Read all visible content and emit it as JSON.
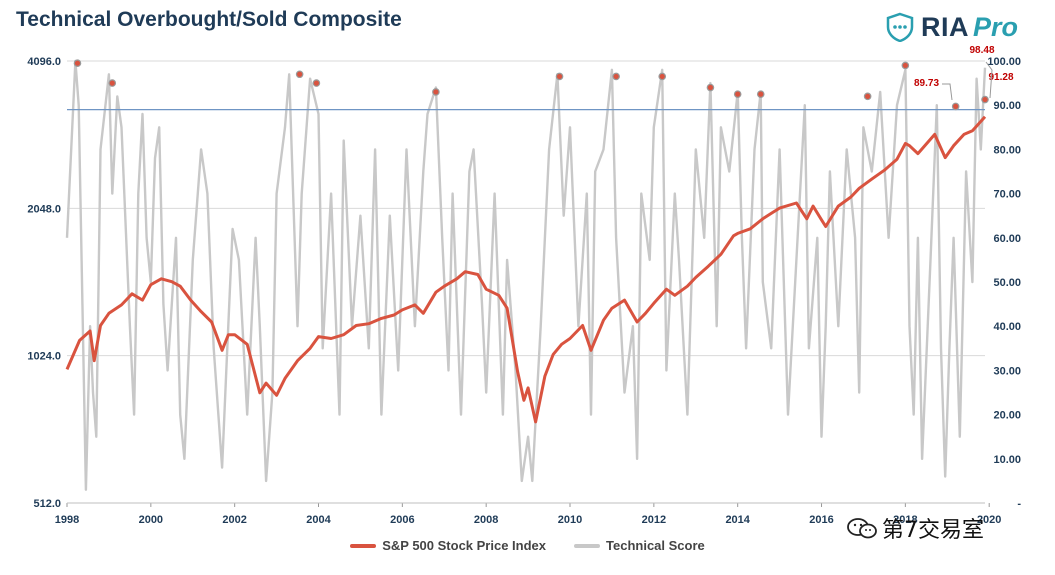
{
  "page": {
    "title": "Technical Overbought/Sold Composite",
    "logo": {
      "brand": "RIA",
      "suffix": "Pro"
    },
    "watermark": "第7交易室"
  },
  "chart_data": {
    "type": "line",
    "title": "Technical Overbought/Sold Composite",
    "x_ticks": [
      "1998",
      "2000",
      "2002",
      "2004",
      "2006",
      "2008",
      "2010",
      "2012",
      "2014",
      "2016",
      "2018",
      "2020"
    ],
    "xlim": [
      1998,
      2019.9
    ],
    "y_left": {
      "ticks": [
        "512.0",
        "1024.0",
        "2048.0",
        "4096.0"
      ],
      "ylim": [
        512,
        4096
      ],
      "scale": "log2"
    },
    "y_right": {
      "ticks": [
        "-",
        "10.00",
        "20.00",
        "30.00",
        "40.00",
        "50.00",
        "60.00",
        "70.00",
        "80.00",
        "90.00",
        "100.00"
      ],
      "ylim": [
        0,
        100
      ]
    },
    "reference_line": {
      "value": 89.0,
      "axis": "right",
      "color": "#6f95c4"
    },
    "annotations": [
      {
        "text": "98.48",
        "color": "#c00000"
      },
      {
        "text": "89.73",
        "color": "#c00000"
      },
      {
        "text": "91.28",
        "color": "#c00000"
      }
    ],
    "legend_position": "bottom-center",
    "series": [
      {
        "name": "S&P 500 Stock Price Index",
        "axis": "left",
        "color": "#d9533f",
        "x": [
          1998.0,
          1998.3,
          1998.55,
          1998.65,
          1998.8,
          1999.0,
          1999.3,
          1999.55,
          1999.8,
          2000.0,
          2000.25,
          2000.5,
          2000.7,
          2000.95,
          2001.2,
          2001.45,
          2001.7,
          2001.85,
          2002.0,
          2002.3,
          2002.6,
          2002.75,
          2003.0,
          2003.2,
          2003.5,
          2003.8,
          2004.0,
          2004.3,
          2004.6,
          2004.9,
          2005.2,
          2005.5,
          2005.8,
          2006.0,
          2006.3,
          2006.5,
          2006.8,
          2007.0,
          2007.3,
          2007.5,
          2007.8,
          2008.0,
          2008.3,
          2008.5,
          2008.75,
          2008.9,
          2009.0,
          2009.18,
          2009.4,
          2009.6,
          2009.8,
          2010.0,
          2010.3,
          2010.5,
          2010.8,
          2011.0,
          2011.3,
          2011.6,
          2011.8,
          2012.0,
          2012.3,
          2012.5,
          2012.8,
          2013.0,
          2013.3,
          2013.6,
          2013.9,
          2014.0,
          2014.3,
          2014.6,
          2014.8,
          2015.0,
          2015.4,
          2015.65,
          2015.8,
          2016.0,
          2016.1,
          2016.4,
          2016.7,
          2016.9,
          2017.2,
          2017.5,
          2017.8,
          2018.0,
          2018.1,
          2018.3,
          2018.7,
          2018.95,
          2019.15,
          2019.4,
          2019.6,
          2019.9
        ],
        "values": [
          960,
          1100,
          1150,
          1000,
          1180,
          1250,
          1300,
          1370,
          1330,
          1430,
          1470,
          1450,
          1420,
          1330,
          1260,
          1200,
          1050,
          1130,
          1130,
          1080,
          860,
          900,
          850,
          920,
          1000,
          1060,
          1120,
          1110,
          1130,
          1180,
          1190,
          1220,
          1240,
          1270,
          1300,
          1250,
          1380,
          1420,
          1470,
          1520,
          1500,
          1400,
          1360,
          1280,
          950,
          830,
          880,
          750,
          930,
          1030,
          1080,
          1110,
          1180,
          1050,
          1210,
          1280,
          1330,
          1200,
          1250,
          1310,
          1400,
          1360,
          1420,
          1480,
          1560,
          1650,
          1800,
          1820,
          1860,
          1950,
          2000,
          2050,
          2100,
          1950,
          2070,
          1940,
          1880,
          2070,
          2160,
          2250,
          2350,
          2450,
          2580,
          2780,
          2750,
          2650,
          2900,
          2600,
          2750,
          2900,
          2950,
          3150
        ],
        "line_width": 3
      },
      {
        "name": "Technical Score",
        "axis": "right",
        "color": "#c8c8c8",
        "x": [
          1998.0,
          1998.1,
          1998.2,
          1998.28,
          1998.45,
          1998.55,
          1998.62,
          1998.7,
          1998.8,
          1999.0,
          1999.08,
          1999.2,
          1999.3,
          1999.5,
          1999.6,
          1999.7,
          1999.8,
          1999.9,
          2000.0,
          2000.1,
          2000.2,
          2000.3,
          2000.4,
          2000.6,
          2000.7,
          2000.8,
          2001.0,
          2001.2,
          2001.35,
          2001.5,
          2001.7,
          2001.8,
          2001.95,
          2002.1,
          2002.3,
          2002.5,
          2002.6,
          2002.75,
          2002.9,
          2003.0,
          2003.2,
          2003.3,
          2003.5,
          2003.6,
          2003.8,
          2004.0,
          2004.1,
          2004.3,
          2004.5,
          2004.6,
          2004.8,
          2005.0,
          2005.2,
          2005.35,
          2005.5,
          2005.7,
          2005.9,
          2006.1,
          2006.3,
          2006.5,
          2006.6,
          2006.8,
          2006.95,
          2007.1,
          2007.2,
          2007.4,
          2007.6,
          2007.7,
          2007.9,
          2008.0,
          2008.2,
          2008.4,
          2008.5,
          2008.7,
          2008.85,
          2009.0,
          2009.1,
          2009.3,
          2009.5,
          2009.7,
          2009.85,
          2010.0,
          2010.2,
          2010.4,
          2010.5,
          2010.6,
          2010.8,
          2011.0,
          2011.1,
          2011.3,
          2011.5,
          2011.6,
          2011.7,
          2011.9,
          2012.0,
          2012.2,
          2012.3,
          2012.5,
          2012.6,
          2012.8,
          2013.0,
          2013.2,
          2013.35,
          2013.5,
          2013.6,
          2013.8,
          2014.0,
          2014.1,
          2014.2,
          2014.4,
          2014.55,
          2014.6,
          2014.8,
          2015.0,
          2015.2,
          2015.4,
          2015.6,
          2015.7,
          2015.9,
          2016.0,
          2016.1,
          2016.2,
          2016.4,
          2016.6,
          2016.8,
          2016.9,
          2017.0,
          2017.2,
          2017.4,
          2017.6,
          2017.8,
          2018.0,
          2018.1,
          2018.2,
          2018.3,
          2018.4,
          2018.6,
          2018.75,
          2018.85,
          2018.95,
          2019.05,
          2019.15,
          2019.3,
          2019.45,
          2019.6,
          2019.7,
          2019.8,
          2019.9
        ],
        "values": [
          60,
          80,
          100,
          90,
          3,
          40,
          25,
          15,
          80,
          97,
          70,
          92,
          85,
          40,
          20,
          70,
          88,
          60,
          50,
          78,
          85,
          45,
          30,
          60,
          20,
          10,
          55,
          80,
          70,
          35,
          8,
          30,
          62,
          55,
          20,
          60,
          40,
          5,
          25,
          70,
          85,
          97,
          40,
          70,
          96,
          88,
          35,
          70,
          20,
          82,
          40,
          65,
          35,
          80,
          20,
          65,
          30,
          80,
          40,
          75,
          88,
          94,
          60,
          30,
          70,
          20,
          75,
          80,
          45,
          25,
          70,
          20,
          55,
          30,
          5,
          15,
          5,
          40,
          80,
          97,
          65,
          85,
          40,
          70,
          20,
          75,
          80,
          98,
          60,
          25,
          40,
          10,
          70,
          55,
          85,
          98,
          30,
          70,
          55,
          20,
          80,
          60,
          95,
          40,
          85,
          75,
          93,
          60,
          35,
          80,
          93,
          50,
          35,
          80,
          20,
          55,
          90,
          35,
          60,
          15,
          40,
          75,
          40,
          80,
          60,
          25,
          85,
          75,
          93,
          60,
          90,
          98,
          40,
          20,
          60,
          10,
          55,
          90,
          35,
          6,
          35,
          60,
          15,
          75,
          50,
          96,
          80,
          98.48
        ]
      }
    ],
    "highlight_points": [
      {
        "x": 1998.25,
        "value": 99.5
      },
      {
        "x": 1999.08,
        "value": 95.0
      },
      {
        "x": 2003.55,
        "value": 97.0
      },
      {
        "x": 2003.95,
        "value": 95.0
      },
      {
        "x": 2006.8,
        "value": 93.0
      },
      {
        "x": 2009.75,
        "value": 96.5
      },
      {
        "x": 2011.1,
        "value": 96.5
      },
      {
        "x": 2012.2,
        "value": 96.5
      },
      {
        "x": 2013.35,
        "value": 94.0
      },
      {
        "x": 2014.0,
        "value": 92.5
      },
      {
        "x": 2014.55,
        "value": 92.5
      },
      {
        "x": 2017.1,
        "value": 92.0
      },
      {
        "x": 2018.0,
        "value": 99.0
      },
      {
        "x": 2019.2,
        "value": 89.73
      },
      {
        "x": 2019.9,
        "value": 91.28
      }
    ]
  }
}
